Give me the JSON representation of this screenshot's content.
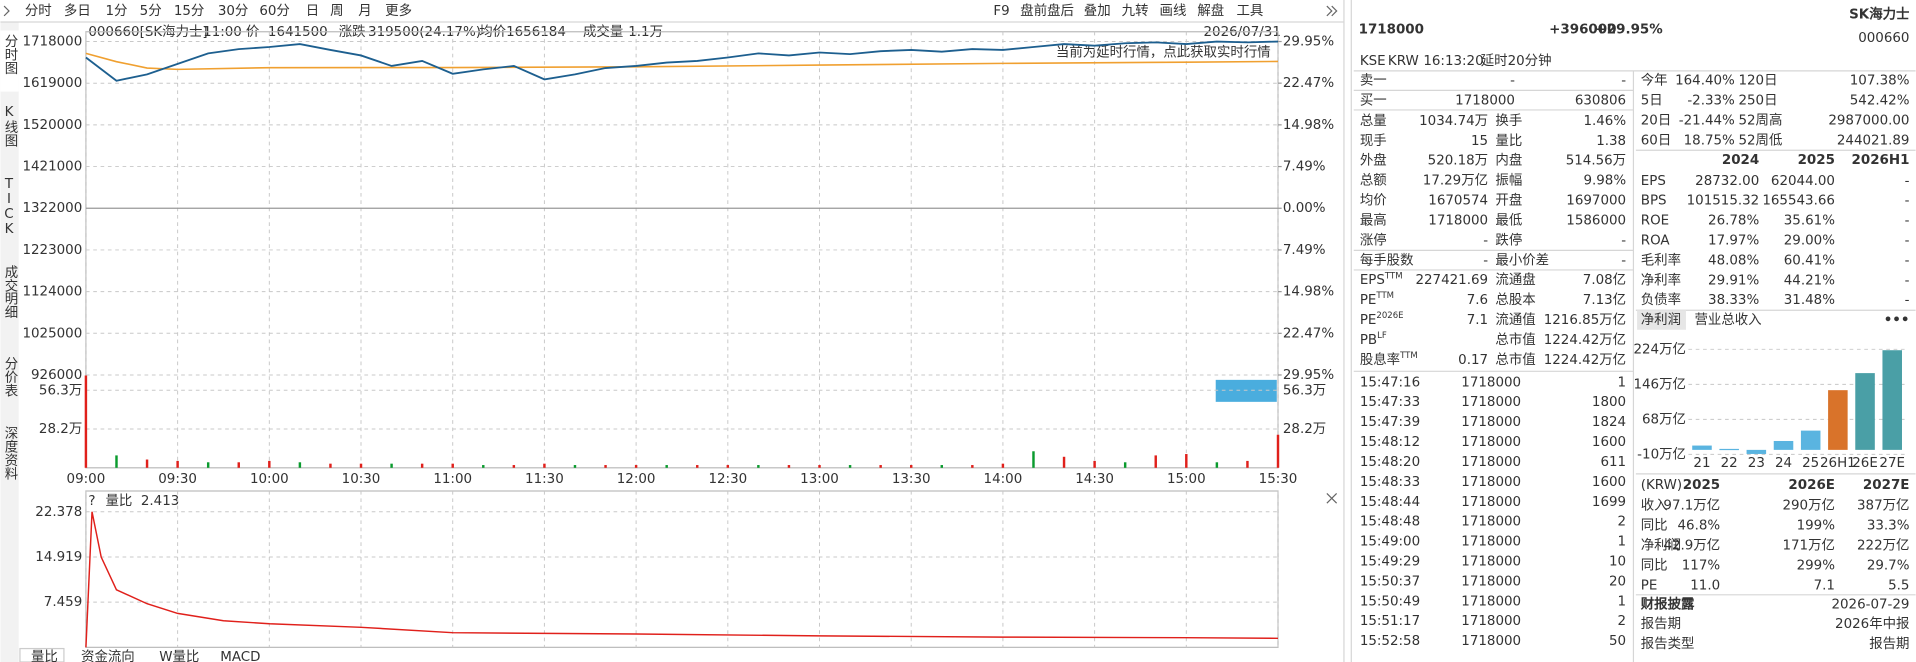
{
  "toolbar": {
    "left": [
      "分时",
      "多日",
      "1分",
      "5分",
      "15分",
      "30分",
      "60分",
      "日",
      "周",
      "月",
      "更多"
    ],
    "right": [
      "F9",
      "盘前盘后",
      "叠加",
      "九转",
      "画线",
      "解盘",
      "工具"
    ]
  },
  "side_tabs": [
    "分时图",
    "K线图",
    "TICK",
    "成交明细",
    "分价表",
    "深度资料"
  ],
  "info_bar": {
    "code": "000660[SK海力士]",
    "time": "11:00",
    "price_label": "价",
    "price": "1641500",
    "change_label": "涨跌",
    "change": "319500(24.17%)",
    "avg_label": "均价",
    "avg": "1656184",
    "vol_label": "成交量",
    "vol": "1.1万",
    "date": "2026/07/31"
  },
  "notice": "当前为延时行情，点此获取实时行情",
  "price_chart": {
    "xlim": [
      "09:00",
      "15:30"
    ],
    "xticks": [
      "09:00",
      "09:30",
      "10:00",
      "10:30",
      "11:00",
      "11:30",
      "12:00",
      "12:30",
      "13:00",
      "13:30",
      "14:00",
      "14:30",
      "15:00",
      "15:30"
    ],
    "ylim": [
      926000,
      1718000
    ],
    "yticks": [
      1718000,
      1619000,
      1520000,
      1421000,
      1322000,
      1223000,
      1124000,
      1025000,
      926000
    ],
    "pct_lim": [
      -29.95,
      29.95
    ],
    "pct_ticks": [
      {
        "value": 29.95,
        "label": "29.95%"
      },
      {
        "value": 22.47,
        "label": "22.47%"
      },
      {
        "value": 14.98,
        "label": "14.98%"
      },
      {
        "value": 7.49,
        "label": "7.49%"
      },
      {
        "value": 0,
        "label": "0.00%"
      },
      {
        "value": -7.49,
        "label": "7.49%"
      },
      {
        "value": -14.98,
        "label": "14.98%"
      },
      {
        "value": -22.47,
        "label": "22.47%"
      },
      {
        "value": -29.95,
        "label": "29.95%"
      }
    ],
    "x": [
      "09:00",
      "09:10",
      "09:20",
      "09:30",
      "09:40",
      "09:50",
      "10:00",
      "10:10",
      "10:20",
      "10:30",
      "10:40",
      "10:50",
      "11:00",
      "11:10",
      "11:20",
      "11:30",
      "11:40",
      "11:50",
      "12:00",
      "12:10",
      "12:20",
      "12:30",
      "12:40",
      "12:50",
      "13:00",
      "13:10",
      "13:20",
      "13:30",
      "13:40",
      "13:50",
      "14:00",
      "14:10",
      "14:20",
      "14:30",
      "14:40",
      "14:50",
      "15:00",
      "15:10",
      "15:20",
      "15:30"
    ],
    "price_line": {
      "color": "#1d5f8f",
      "values": [
        1680000,
        1625000,
        1640000,
        1665000,
        1690000,
        1700000,
        1705000,
        1712000,
        1698000,
        1685000,
        1660000,
        1672000,
        1641500,
        1652000,
        1660000,
        1628000,
        1640000,
        1655000,
        1660000,
        1668000,
        1672000,
        1680000,
        1690000,
        1685000,
        1692000,
        1688000,
        1695000,
        1698000,
        1694000,
        1700000,
        1698000,
        1705000,
        1712000,
        1708000,
        1714000,
        1716000,
        1712000,
        1718000,
        1716000,
        1718000
      ]
    },
    "avg_line": {
      "color": "#f0a030",
      "x": [
        "09:00",
        "09:10",
        "09:20",
        "09:30",
        "10:00",
        "11:00",
        "12:00",
        "13:00",
        "14:00",
        "15:00",
        "15:30"
      ],
      "values": [
        1690000,
        1670000,
        1655000,
        1652000,
        1656000,
        1656184,
        1658000,
        1662000,
        1666000,
        1669000,
        1670574
      ]
    },
    "volume": {
      "ylim": [
        0,
        67.4
      ],
      "yticks": [
        {
          "value": 56.3,
          "label": "56.3万"
        },
        {
          "value": 28.2,
          "label": "28.2万"
        }
      ],
      "up_color": "#e0201b",
      "down_color": "#0a9b2e",
      "values": [
        67,
        9,
        6,
        5,
        4,
        4,
        5,
        4,
        3,
        3,
        3,
        3,
        3,
        2,
        2,
        3,
        2,
        2,
        2,
        2,
        2,
        2,
        2,
        2,
        2,
        2,
        2,
        2,
        2,
        2,
        3,
        12,
        8,
        5,
        4,
        9,
        10,
        4,
        5,
        24
      ]
    }
  },
  "ratio_chart": {
    "help": "?",
    "title": "量比",
    "value": "2.413",
    "color": "#e0201b",
    "ylim": [
      0,
      22.378
    ],
    "yticks": [
      22.378,
      14.919,
      7.459
    ],
    "x": [
      "09:00",
      "09:02",
      "09:05",
      "09:10",
      "09:20",
      "09:30",
      "09:45",
      "10:00",
      "10:30",
      "11:00",
      "11:30",
      "12:00",
      "13:00",
      "14:00",
      "15:00",
      "15:30"
    ],
    "values": [
      0,
      22.378,
      14.9,
      9.5,
      7.2,
      5.6,
      4.4,
      3.9,
      3.3,
      2.413,
      2.3,
      2.2,
      1.9,
      1.7,
      1.6,
      1.5
    ]
  },
  "bottom_tabs": [
    "量比",
    "资金流向",
    "W量比",
    "MACD"
  ],
  "quote": {
    "price": "1718000",
    "change": "+396000",
    "pct": "+29.95%",
    "name": "SK海力士",
    "code": "000660",
    "exchange": "KSE",
    "currency": "KRW",
    "time": "16:13:20",
    "delay": "延时20分钟"
  },
  "order_book": [
    [
      "卖一",
      "-",
      "-"
    ],
    [
      "买一",
      "1718000",
      "630806"
    ]
  ],
  "stats": [
    [
      "总量",
      "1034.74万",
      "换手",
      "1.46%"
    ],
    [
      "现手",
      "15",
      "量比",
      "1.38"
    ],
    [
      "外盘",
      "520.18万",
      "内盘",
      "514.56万"
    ],
    [
      "总额",
      "17.29万亿",
      "振幅",
      "9.98%"
    ],
    [
      "均价",
      "1670574",
      "开盘",
      "1697000"
    ],
    [
      "最高",
      "1718000",
      "最低",
      "1586000"
    ],
    [
      "涨停",
      "-",
      "跌停",
      "-"
    ],
    [
      "每手股数",
      "-",
      "最小价差",
      "-"
    ],
    [
      [
        "EPS",
        "TTM"
      ],
      "227421.69",
      "流通盘",
      "7.08亿"
    ],
    [
      [
        "PE",
        "TTM"
      ],
      "7.6",
      "总股本",
      "7.13亿"
    ],
    [
      [
        "PE",
        "2026E"
      ],
      "7.1",
      "流通值",
      "1216.85万亿"
    ],
    [
      [
        "PB",
        "LF"
      ],
      null,
      "总市值",
      "1224.42万亿"
    ],
    [
      [
        "股息率",
        "TTM"
      ],
      "0.17",
      "总市值",
      "1224.42万亿"
    ]
  ],
  "trades": [
    [
      "15:47:16",
      "1718000",
      "1"
    ],
    [
      "15:47:33",
      "1718000",
      "1800"
    ],
    [
      "15:47:39",
      "1718000",
      "1824"
    ],
    [
      "15:48:12",
      "1718000",
      "1600"
    ],
    [
      "15:48:20",
      "1718000",
      "611"
    ],
    [
      "15:48:33",
      "1718000",
      "1600"
    ],
    [
      "15:48:44",
      "1718000",
      "1699"
    ],
    [
      "15:48:48",
      "1718000",
      "2"
    ],
    [
      "15:49:00",
      "1718000",
      "1"
    ],
    [
      "15:49:29",
      "1718000",
      "10"
    ],
    [
      "15:50:37",
      "1718000",
      "20"
    ],
    [
      "15:50:49",
      "1718000",
      "1"
    ],
    [
      "15:51:17",
      "1718000",
      "2"
    ],
    [
      "15:52:58",
      "1718000",
      "50"
    ]
  ],
  "performance": [
    [
      "今年",
      "164.40%",
      "120日",
      "107.38%"
    ],
    [
      "5日",
      "-2.33%",
      "250日",
      "542.42%"
    ],
    [
      "20日",
      "-21.44%",
      "52周高",
      "2987000.00"
    ],
    [
      "60日",
      "18.75%",
      "52周低",
      "244021.89"
    ]
  ],
  "fin_table": {
    "header": [
      "2024",
      "2025",
      "2026H1"
    ],
    "rows": [
      [
        "EPS",
        "28732.00",
        "62044.00",
        "-"
      ],
      [
        "BPS",
        "101515.32",
        "165543.66",
        "-"
      ],
      [
        "ROE",
        "26.78%",
        "35.61%",
        "-"
      ],
      [
        "ROA",
        "17.97%",
        "29.00%",
        "-"
      ],
      [
        "毛利率",
        "48.08%",
        "60.41%",
        "-"
      ],
      [
        "净利率",
        "29.91%",
        "44.21%",
        "-"
      ],
      [
        "负债率",
        "38.33%",
        "31.48%",
        "-"
      ]
    ]
  },
  "profit_chart": {
    "tabs": [
      "净利润",
      "营业总收入"
    ],
    "more": "•••",
    "categories": [
      "21",
      "22",
      "23",
      "24",
      "25",
      "26H1",
      "26E",
      "27E"
    ],
    "values": [
      9.6,
      2.2,
      -9.1,
      19.8,
      42.9,
      133,
      171,
      222
    ],
    "colors": [
      "#5ab4e0",
      "#5ab4e0",
      "#5ab4e0",
      "#5ab4e0",
      "#5ab4e0",
      "#d9732a",
      "#4a9fa6",
      "#4a9fa6"
    ],
    "ylim": [
      -10,
      224
    ],
    "yticks": [
      {
        "value": 224,
        "label": "224万亿"
      },
      {
        "value": 146,
        "label": "146万亿"
      },
      {
        "value": 68,
        "label": "68万亿"
      },
      {
        "value": -10,
        "label": "-10万亿"
      }
    ]
  },
  "forecast": {
    "header": [
      "(KRW)",
      "2025",
      "2026E",
      "2027E"
    ],
    "rows": [
      [
        "收入",
        "97.1万亿",
        "290万亿",
        "387万亿"
      ],
      [
        "同比",
        "46.8%",
        "199%",
        "33.3%"
      ],
      [
        "净利润",
        "42.9万亿",
        "171万亿",
        "222万亿"
      ],
      [
        "同比",
        "117%",
        "299%",
        "29.7%"
      ],
      [
        "PE",
        "11.0",
        "7.1",
        "5.5"
      ]
    ]
  },
  "disclosure": {
    "title": "财报披露",
    "date": "2026-07-29",
    "rows": [
      [
        "报告期",
        "2026年中报"
      ],
      [
        "报告类型",
        "报告期"
      ]
    ]
  }
}
